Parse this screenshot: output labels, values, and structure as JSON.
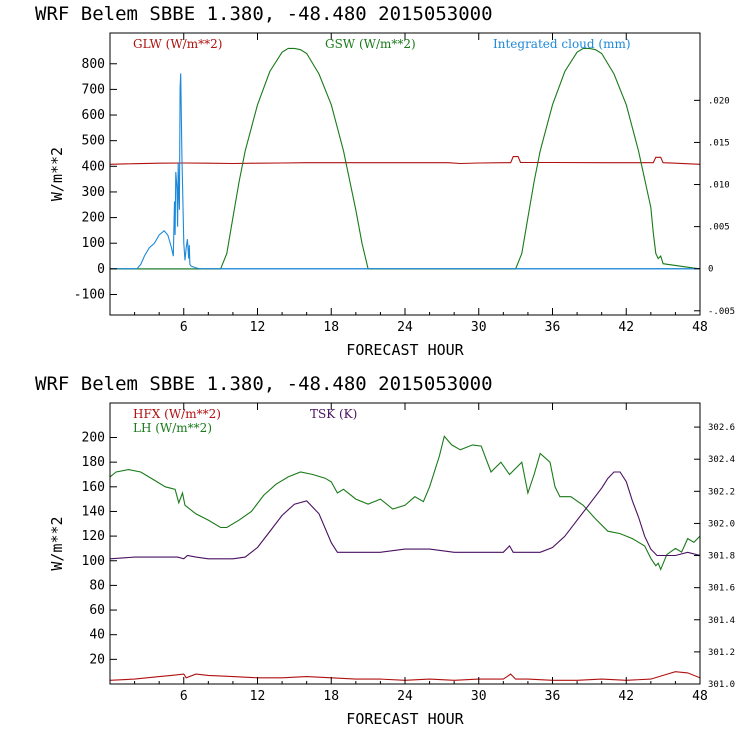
{
  "chart_data": [
    {
      "type": "line",
      "title": "WRF   Belem SBBE      1.380, -48.480  2015053000",
      "xlabel": "FORECAST HOUR",
      "ylabel": "W/m**2",
      "xlim": [
        0,
        48
      ],
      "ylim": [
        -180,
        920
      ],
      "x_ticks": [
        6,
        12,
        18,
        24,
        30,
        36,
        42,
        48
      ],
      "y_ticks": [
        -100,
        0,
        100,
        200,
        300,
        400,
        500,
        600,
        700,
        800
      ],
      "y2_ticks": [
        -0.005,
        0,
        0.005,
        0.01,
        0.015,
        0.02
      ],
      "y2_tick_labels": [
        "-.005",
        "0",
        ".005",
        ".010",
        ".015",
        ".020"
      ],
      "y2lim": [
        -0.0055,
        0.028
      ],
      "legend": [
        {
          "label": "GLW (W/m**2)",
          "color": "#b01010"
        },
        {
          "label": "GSW (W/m**2)",
          "color": "#1a7a1a"
        },
        {
          "label": "Integrated cloud (mm)",
          "color": "#1e88d8"
        }
      ],
      "series": [
        {
          "name": "GLW (W/m**2)",
          "axis": "left",
          "color": "#b01010",
          "x": [
            0,
            2,
            4,
            6,
            8,
            10,
            12,
            14,
            16,
            18,
            20,
            22,
            24,
            26,
            27.5,
            28.5,
            30,
            32,
            32.6,
            32.8,
            33.2,
            33.4,
            36,
            40,
            44.2,
            44.4,
            44.8,
            45,
            46,
            48
          ],
          "y": [
            408,
            410,
            412,
            413,
            412,
            411,
            412,
            413,
            414,
            414,
            414,
            414,
            414,
            414,
            414,
            411,
            413,
            414,
            414,
            438,
            438,
            415,
            415,
            414,
            414,
            435,
            435,
            414,
            412,
            408
          ]
        },
        {
          "name": "GSW (W/m**2)",
          "axis": "left",
          "color": "#1a7a1a",
          "x": [
            0,
            9,
            9.5,
            10,
            10.5,
            11,
            12,
            13,
            14,
            14.5,
            15,
            15.5,
            16,
            17,
            18,
            19,
            20,
            20.5,
            21,
            33,
            33.5,
            34,
            34.5,
            35,
            36,
            37,
            38,
            38.5,
            39,
            39.5,
            40,
            41,
            42,
            43,
            44,
            44.2,
            44.4,
            44.6,
            44.8,
            45,
            48
          ],
          "y": [
            0,
            0,
            60,
            200,
            340,
            460,
            640,
            770,
            845,
            860,
            860,
            855,
            840,
            760,
            640,
            460,
            230,
            100,
            0,
            0,
            60,
            200,
            340,
            460,
            640,
            770,
            845,
            860,
            860,
            855,
            840,
            760,
            640,
            460,
            240,
            140,
            60,
            40,
            50,
            20,
            0
          ]
        },
        {
          "name": "Integrated cloud (mm)",
          "axis": "right",
          "color": "#1e88d8",
          "x": [
            0,
            2.2,
            2.5,
            2.8,
            3.2,
            3.6,
            4.0,
            4.4,
            4.7,
            5.0,
            5.15,
            5.25,
            5.3,
            5.35,
            5.45,
            5.5,
            5.55,
            5.6,
            5.65,
            5.7,
            5.75,
            5.85,
            6.0,
            6.1,
            6.2,
            6.3,
            6.4,
            6.45,
            6.5,
            6.6,
            6.8,
            7.0,
            7.3,
            48
          ],
          "y": [
            0,
            0,
            0.0005,
            0.0015,
            0.0025,
            0.003,
            0.004,
            0.0045,
            0.004,
            0.0025,
            0.0015,
            0.008,
            0.004,
            0.0115,
            0.0095,
            0.005,
            0.0125,
            0.009,
            0.007,
            0.0215,
            0.0232,
            0.0135,
            0.003,
            0.001,
            0.0025,
            0.0035,
            0.0012,
            0.0028,
            0.0005,
            0.0003,
            0.0002,
            0.0001,
            0,
            0
          ]
        }
      ]
    },
    {
      "type": "line",
      "title": "WRF   Belem SBBE      1.380, -48.480  2015053000",
      "xlabel": "FORECAST HOUR",
      "ylabel": "W/m**2",
      "xlim": [
        0,
        48
      ],
      "ylim": [
        0,
        228
      ],
      "x_ticks": [
        6,
        12,
        18,
        24,
        30,
        36,
        42,
        48
      ],
      "y_ticks": [
        20,
        40,
        60,
        80,
        100,
        120,
        140,
        160,
        180,
        200
      ],
      "y2_ticks": [
        301.0,
        301.2,
        301.4,
        301.6,
        301.8,
        302.0,
        302.2,
        302.4,
        302.6
      ],
      "y2_tick_labels": [
        "301.0",
        "301.2",
        "301.4",
        "301.6",
        "301.8",
        "302.0",
        "302.2",
        "302.4",
        "302.6"
      ],
      "y2lim": [
        301.0,
        302.75
      ],
      "legend": [
        {
          "label": "HFX (W/m**2)",
          "color": "#b01010"
        },
        {
          "label": "LH  (W/m**2)",
          "color": "#1a7a1a"
        },
        {
          "label": "TSK (K)",
          "color": "#4a1060"
        }
      ],
      "series": [
        {
          "name": "HFX (W/m**2)",
          "axis": "left",
          "color": "#b01010",
          "x": [
            0,
            2,
            4,
            5,
            6,
            6.2,
            7,
            8,
            10,
            12,
            14,
            16,
            18,
            20,
            22,
            24,
            26,
            28,
            30,
            32,
            32.6,
            33,
            34,
            36,
            38,
            40,
            42,
            44,
            45,
            46,
            47,
            48
          ],
          "y": [
            3,
            4,
            6,
            7,
            8,
            5,
            8,
            7,
            6,
            5,
            5,
            6,
            5,
            4,
            4,
            3,
            4,
            3,
            4,
            4,
            8,
            4,
            4,
            3,
            3,
            4,
            3,
            4,
            7,
            10,
            9,
            5
          ]
        },
        {
          "name": "LH  (W/m**2)",
          "axis": "left",
          "color": "#1a7a1a",
          "x": [
            0,
            0.5,
            1.5,
            2.5,
            3.5,
            4.5,
            5.3,
            5.6,
            5.9,
            6.1,
            7,
            8,
            9,
            9.5,
            10.5,
            11.5,
            12.5,
            13.5,
            14.5,
            15.5,
            16.5,
            17.5,
            18,
            18.5,
            19,
            20,
            21,
            22,
            23,
            24,
            24.8,
            25.5,
            26,
            26.8,
            27.2,
            27.8,
            28.5,
            29.5,
            30.2,
            31,
            31.8,
            32.5,
            33.5,
            34,
            34.5,
            35,
            35.8,
            36.2,
            36.6,
            37.5,
            38.5,
            39.5,
            40.5,
            41.5,
            42.5,
            43.5,
            44,
            44.4,
            44.6,
            44.8,
            45.3,
            46,
            46.5,
            47,
            47.5,
            48
          ],
          "y": [
            168,
            172,
            174,
            172,
            166,
            160,
            158,
            147,
            155,
            145,
            138,
            133,
            127,
            127,
            133,
            140,
            153,
            162,
            168,
            172,
            170,
            167,
            164,
            155,
            158,
            150,
            146,
            150,
            142,
            145,
            152,
            148,
            160,
            185,
            201,
            194,
            190,
            194,
            193,
            172,
            180,
            170,
            180,
            155,
            170,
            187,
            180,
            160,
            152,
            152,
            145,
            134,
            124,
            122,
            118,
            112,
            102,
            96,
            98,
            93,
            105,
            110,
            107,
            118,
            115,
            120
          ]
        },
        {
          "name": "TSK (K)",
          "axis": "right",
          "color": "#4a1060",
          "x": [
            0,
            2,
            4,
            5.5,
            6,
            6.3,
            7,
            8,
            10,
            11,
            12,
            13,
            14,
            15,
            16,
            17,
            18,
            18.5,
            19,
            20,
            22,
            24,
            26,
            28,
            30,
            32,
            32.5,
            32.8,
            33,
            34,
            35,
            36,
            37,
            38,
            39,
            40,
            40.5,
            41,
            41.5,
            42,
            42.5,
            43,
            43.5,
            44,
            44.5,
            45,
            46,
            47,
            48
          ],
          "y": [
            301.78,
            301.79,
            301.79,
            301.79,
            301.78,
            301.8,
            301.79,
            301.78,
            301.78,
            301.79,
            301.85,
            301.95,
            302.05,
            302.12,
            302.14,
            302.06,
            301.88,
            301.82,
            301.82,
            301.82,
            301.82,
            301.84,
            301.84,
            301.82,
            301.82,
            301.82,
            301.86,
            301.82,
            301.82,
            301.82,
            301.82,
            301.85,
            301.92,
            302.02,
            302.12,
            302.22,
            302.28,
            302.32,
            302.32,
            302.26,
            302.14,
            302.04,
            301.92,
            301.84,
            301.8,
            301.8,
            301.8,
            301.82,
            301.8
          ]
        }
      ]
    }
  ]
}
